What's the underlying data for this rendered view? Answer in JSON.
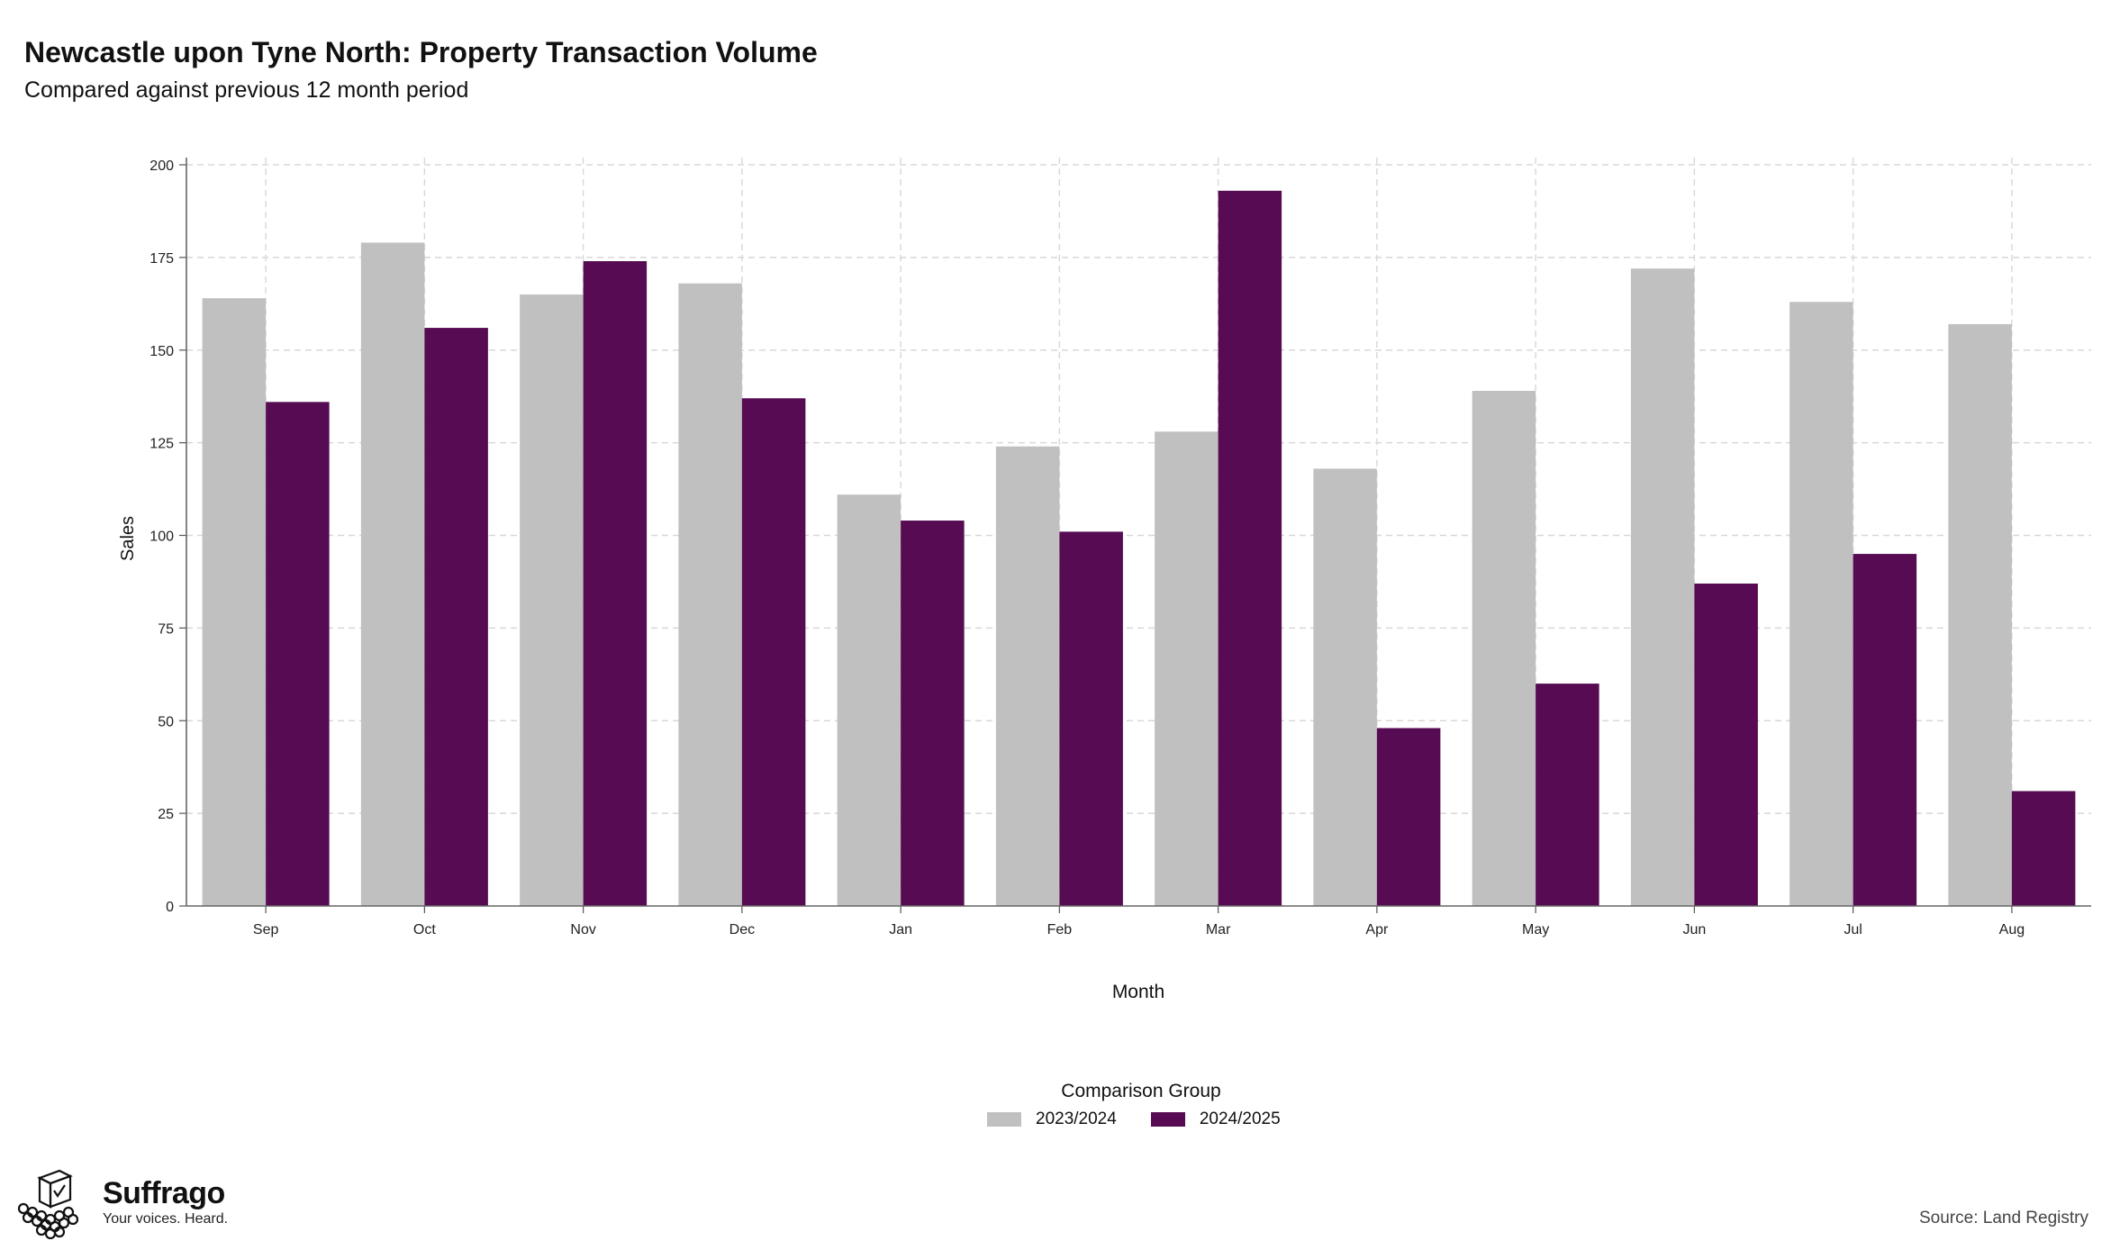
{
  "chart_data": {
    "type": "bar",
    "title": "Newcastle upon Tyne North: Property Transaction Volume",
    "subtitle": "Compared against previous 12 month period",
    "xlabel": "Month",
    "ylabel": "Sales",
    "categories": [
      "Sep",
      "Oct",
      "Nov",
      "Dec",
      "Jan",
      "Feb",
      "Mar",
      "Apr",
      "May",
      "Jun",
      "Jul",
      "Aug"
    ],
    "series": [
      {
        "name": "2023/2024",
        "color": "#c0c0c0",
        "values": [
          164,
          179,
          165,
          168,
          111,
          124,
          128,
          118,
          139,
          172,
          163,
          157
        ]
      },
      {
        "name": "2024/2025",
        "color": "#560b52",
        "values": [
          136,
          156,
          174,
          137,
          104,
          101,
          193,
          48,
          60,
          87,
          95,
          31
        ]
      }
    ],
    "ylim": [
      0,
      200
    ],
    "yticks": [
      0,
      25,
      50,
      75,
      100,
      125,
      150,
      175,
      200
    ],
    "grid": true,
    "legend": {
      "title": "Comparison Group",
      "position": "bottom-center"
    }
  },
  "brand": {
    "name": "Suffrago",
    "tagline": "Your voices. Heard.",
    "logo_icon": "ballot-box-icon"
  },
  "source": "Source: Land Registry"
}
